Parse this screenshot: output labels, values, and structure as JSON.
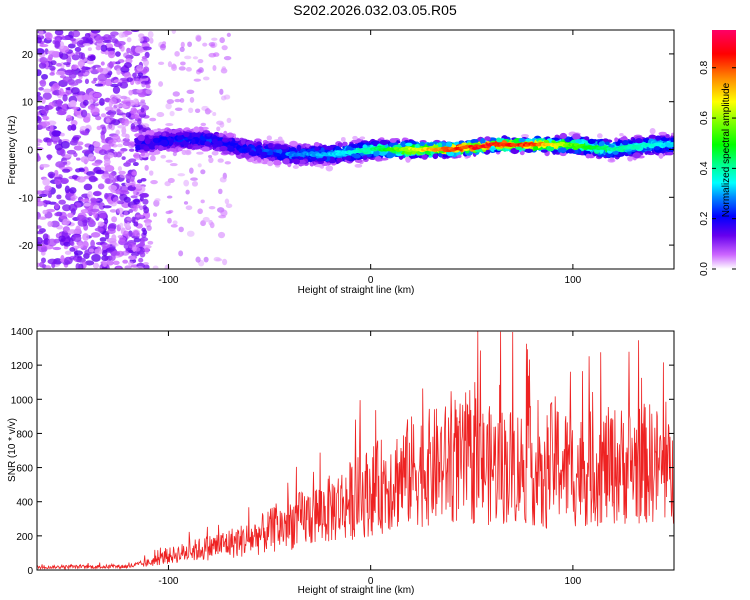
{
  "title": "S202.2026.032.03.05.R05",
  "chart_data": [
    {
      "type": "heatmap",
      "name": "spectrogram",
      "xlabel": "Height of straight line (km)",
      "ylabel": "Frequency (Hz)",
      "xlim": [
        -165,
        150
      ],
      "ylim": [
        -25,
        25
      ],
      "xticks": [
        -100,
        0,
        100
      ],
      "xtick_labels": [
        "-100",
        "0",
        "100"
      ],
      "yticks": [
        -20,
        -10,
        0,
        10,
        20
      ],
      "ytick_labels": [
        "-20",
        "-10",
        "0",
        "10",
        "20"
      ],
      "colorbar": {
        "label": "Normalized spectral amplitude",
        "range": [
          0,
          0.95
        ],
        "ticks": [
          0.0,
          0.2,
          0.4,
          0.6,
          0.8
        ],
        "tick_labels": [
          "0.0",
          "0.2",
          "0.4",
          "0.6",
          "0.8"
        ]
      },
      "ridge": {
        "x": [
          -115,
          -100,
          -80,
          -60,
          -40,
          -20,
          0,
          20,
          40,
          60,
          80,
          100,
          120,
          140,
          150
        ],
        "freq": [
          1,
          2,
          2,
          0,
          -1,
          -1,
          0,
          0,
          0,
          1,
          1,
          1,
          0,
          1,
          1
        ],
        "amplitude": [
          0.2,
          0.25,
          0.25,
          0.25,
          0.3,
          0.35,
          0.45,
          0.7,
          0.9,
          0.95,
          0.9,
          0.6,
          0.45,
          0.4,
          0.35
        ]
      }
    },
    {
      "type": "line",
      "name": "snr",
      "xlabel": "Height of straight line (km)",
      "ylabel": "SNR (10 * v/v)",
      "xlim": [
        -165,
        150
      ],
      "ylim": [
        0,
        1400
      ],
      "xticks": [
        -100,
        0,
        100
      ],
      "xtick_labels": [
        "-100",
        "0",
        "100"
      ],
      "yticks": [
        0,
        200,
        400,
        600,
        800,
        1000,
        1200,
        1400
      ],
      "ytick_labels": [
        "0",
        "200",
        "400",
        "600",
        "800",
        "1000",
        "1200",
        "1400"
      ],
      "series": [
        {
          "name": "SNR",
          "color": "#ee2222",
          "envelope_x": [
            -165,
            -120,
            -110,
            -100,
            -80,
            -60,
            -40,
            -20,
            0,
            20,
            40,
            60,
            80,
            85,
            90,
            100,
            120,
            140,
            150
          ],
          "envelope_y": [
            20,
            25,
            50,
            100,
            160,
            220,
            330,
            430,
            560,
            700,
            760,
            740,
            740,
            550,
            800,
            700,
            740,
            760,
            640
          ]
        }
      ]
    }
  ]
}
